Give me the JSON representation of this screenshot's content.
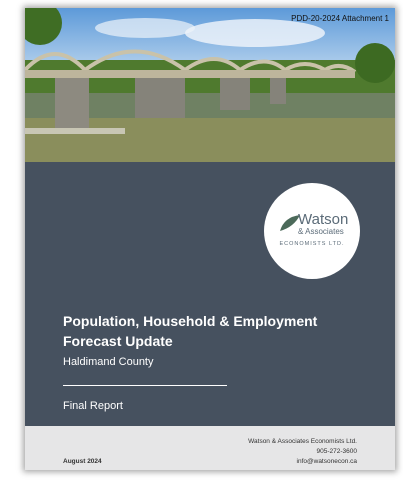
{
  "header": {
    "attachment": "PDD-20-2024 Attachment 1"
  },
  "logo": {
    "name": "Watson",
    "subname": "& Associates",
    "tagline": "ECONOMISTS LTD."
  },
  "title": {
    "line1": "Population, Household & Employment",
    "line2": "Forecast Update"
  },
  "subtitle": "Haldimand County",
  "report_type": "Final Report",
  "footer": {
    "date": "August 2024",
    "company": "Watson & Associates Economists Ltd.",
    "phone": "905-272-3600",
    "email": "info@watsonecon.ca"
  }
}
